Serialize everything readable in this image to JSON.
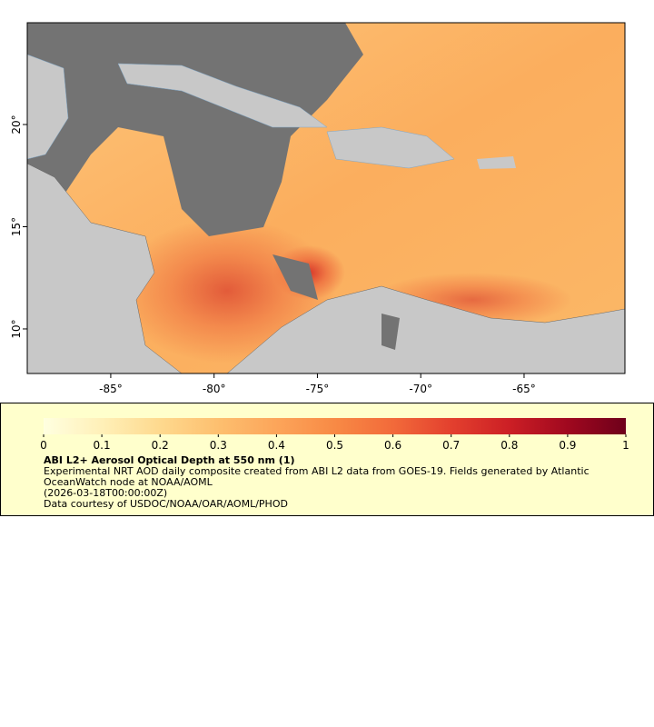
{
  "map": {
    "xlim": [
      -89.04,
      -60.12
    ],
    "ylim": [
      7.82,
      24.98
    ],
    "xticks": [
      {
        "value": -85,
        "label": "-85°"
      },
      {
        "value": -80,
        "label": "-80°"
      },
      {
        "value": -75,
        "label": "-75°"
      },
      {
        "value": -70,
        "label": "-70°"
      },
      {
        "value": -65,
        "label": "-65°"
      }
    ],
    "yticks": [
      {
        "value": 10,
        "label": "10°"
      },
      {
        "value": 15,
        "label": "15°"
      },
      {
        "value": 20,
        "label": "20°"
      }
    ]
  },
  "colorbar": {
    "range": [
      0,
      1
    ],
    "ticks": [
      0,
      0.1,
      0.2,
      0.3,
      0.4,
      0.5,
      0.6,
      0.7,
      0.8,
      0.9,
      1
    ],
    "colors": [
      "#ffffe0",
      "#fff0b8",
      "#fed98e",
      "#fdbf6f",
      "#fca55a",
      "#f88a45",
      "#f26a3a",
      "#e3402e",
      "#cc1f25",
      "#a0081f",
      "#6e001a"
    ]
  },
  "legend": {
    "title": "ABI L2+ Aerosol Optical Depth at 550 nm (1)",
    "description": "Experimental NRT AOD daily composite created from ABI L2 data from GOES-19. Fields generated by Atlantic OceanWatch node at NOAA/AOML",
    "time": "(2026-03-18T00:00:00Z)",
    "credit": "Data courtesy of USDOC/NOAA/OAR/AOML/PHOD"
  }
}
